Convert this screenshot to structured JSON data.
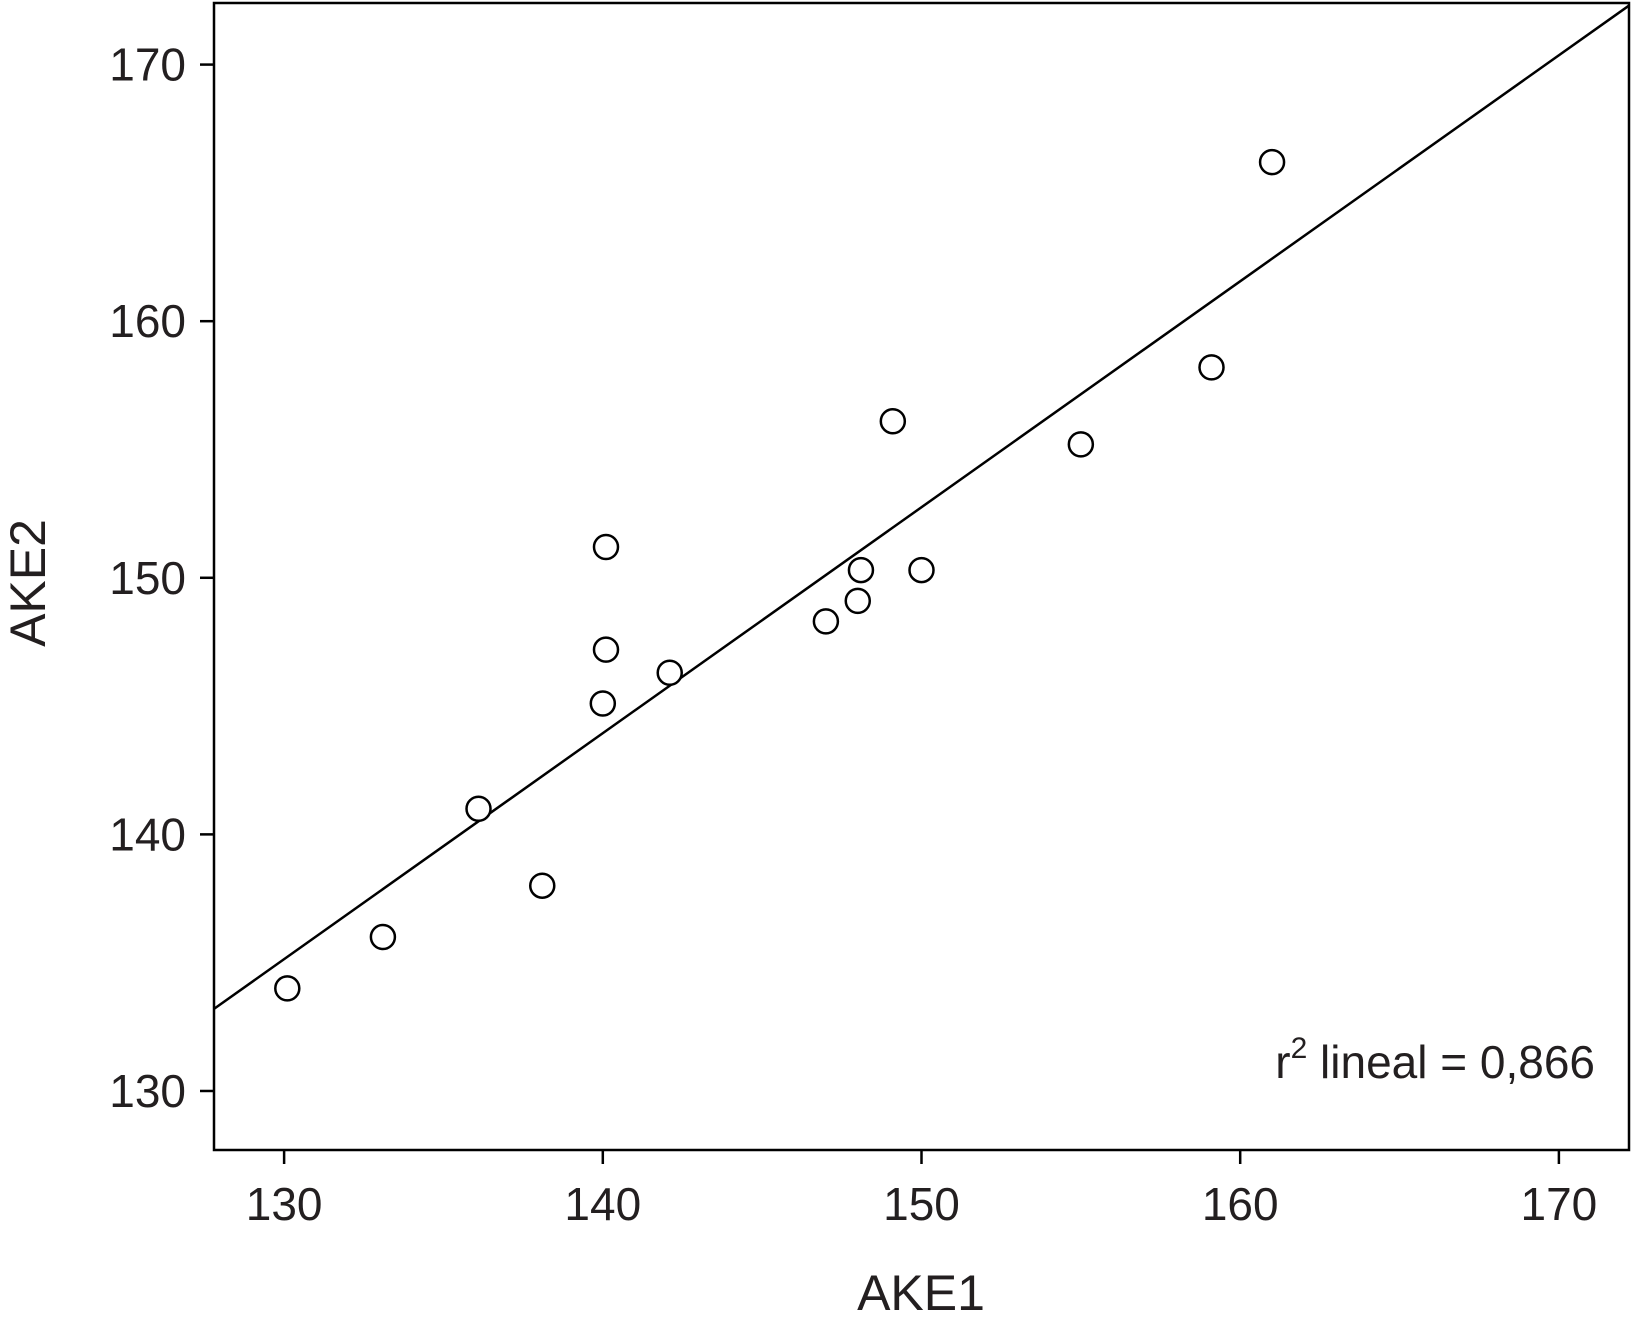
{
  "chart_data": {
    "type": "scatter",
    "xlabel": "AKE1",
    "ylabel": "AKE2",
    "xlim": [
      127.8,
      172.2
    ],
    "ylim": [
      127.7,
      172.4
    ],
    "xticks": [
      130,
      140,
      150,
      160,
      170
    ],
    "yticks": [
      130,
      140,
      150,
      160,
      170
    ],
    "grid": false,
    "series": [
      {
        "points": [
          {
            "x": 130.1,
            "y": 134.0
          },
          {
            "x": 133.1,
            "y": 136.0
          },
          {
            "x": 136.1,
            "y": 141.0
          },
          {
            "x": 138.1,
            "y": 138.0
          },
          {
            "x": 140.0,
            "y": 145.1
          },
          {
            "x": 140.1,
            "y": 147.2
          },
          {
            "x": 140.1,
            "y": 151.2
          },
          {
            "x": 142.1,
            "y": 146.3
          },
          {
            "x": 147.0,
            "y": 148.3
          },
          {
            "x": 148.0,
            "y": 149.1
          },
          {
            "x": 148.1,
            "y": 150.3
          },
          {
            "x": 149.1,
            "y": 156.1
          },
          {
            "x": 150.0,
            "y": 150.3
          },
          {
            "x": 155.0,
            "y": 155.2
          },
          {
            "x": 159.1,
            "y": 158.2
          },
          {
            "x": 161.0,
            "y": 166.2
          }
        ]
      }
    ],
    "fit_line": {
      "x": [
        127.8,
        172.2
      ],
      "y": [
        133.2,
        172.3
      ]
    },
    "annotation": {
      "prefix": "r",
      "superscript": "2",
      "text": " lineal = 0,866"
    }
  }
}
